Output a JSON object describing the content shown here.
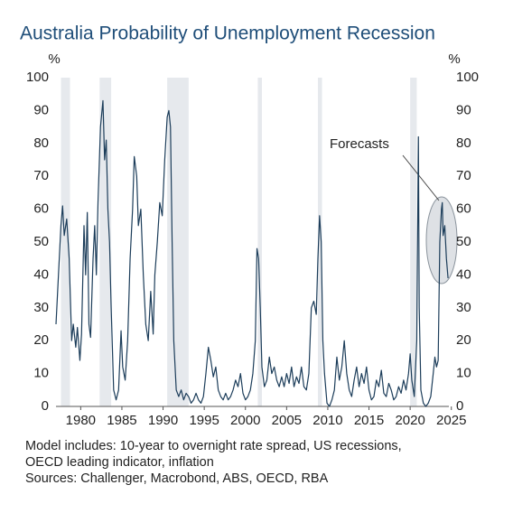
{
  "chart_data": {
    "type": "line",
    "title": "Australia Probability of Unemployment Recession",
    "y_label": "%",
    "xlim": [
      1977,
      2024.7
    ],
    "xticks": [
      1980,
      1985,
      1990,
      1995,
      2000,
      2005,
      2010,
      2015,
      2020,
      2025
    ],
    "ylim": [
      0,
      100
    ],
    "yticks": [
      0,
      10,
      20,
      30,
      40,
      50,
      60,
      70,
      80,
      90,
      100
    ],
    "grid": false,
    "shaded_periods": [
      [
        1977.6,
        1978.7
      ],
      [
        1982.3,
        1983.7
      ],
      [
        1990.5,
        1993.1
      ],
      [
        2001.5,
        2002.0
      ],
      [
        2008.8,
        2009.3
      ],
      [
        2020.0,
        2020.8
      ]
    ],
    "annotation": "Forecasts",
    "notes": [
      "Model includes: 10-year to overnight rate spread, US recessions,",
      "OECD leading indicator, inflation",
      "Sources: Challenger, Macrobond, ABS, OECD, RBA"
    ],
    "series": [
      {
        "name": "Probability",
        "color": "#1c3d5a",
        "x": [
          1977.0,
          1977.3,
          1977.6,
          1977.8,
          1978.0,
          1978.3,
          1978.6,
          1978.9,
          1979.1,
          1979.4,
          1979.6,
          1979.9,
          1980.1,
          1980.4,
          1980.6,
          1980.8,
          1981.0,
          1981.2,
          1981.5,
          1981.7,
          1981.9,
          1982.1,
          1982.4,
          1982.7,
          1982.9,
          1983.1,
          1983.3,
          1983.5,
          1983.7,
          1984.0,
          1984.3,
          1984.6,
          1984.9,
          1985.1,
          1985.4,
          1985.7,
          1986.0,
          1986.3,
          1986.5,
          1986.8,
          1987.0,
          1987.3,
          1987.6,
          1987.9,
          1988.2,
          1988.5,
          1988.8,
          1989.0,
          1989.3,
          1989.6,
          1989.9,
          1990.2,
          1990.5,
          1990.7,
          1990.9,
          1991.1,
          1991.3,
          1991.6,
          1991.9,
          1992.2,
          1992.5,
          1992.8,
          1993.1,
          1993.4,
          1993.7,
          1994.0,
          1994.3,
          1994.6,
          1994.9,
          1995.2,
          1995.5,
          1995.8,
          1996.1,
          1996.4,
          1996.7,
          1997.0,
          1997.3,
          1997.6,
          1997.9,
          1998.2,
          1998.5,
          1998.8,
          1999.1,
          1999.4,
          1999.7,
          2000.0,
          2000.3,
          2000.6,
          2000.9,
          2001.2,
          2001.4,
          2001.6,
          2001.8,
          2002.0,
          2002.3,
          2002.6,
          2002.9,
          2003.2,
          2003.5,
          2003.8,
          2004.1,
          2004.4,
          2004.7,
          2005.0,
          2005.3,
          2005.6,
          2005.9,
          2006.2,
          2006.5,
          2006.8,
          2007.1,
          2007.4,
          2007.7,
          2008.0,
          2008.3,
          2008.6,
          2008.8,
          2009.0,
          2009.2,
          2009.4,
          2009.6,
          2009.9,
          2010.2,
          2010.5,
          2010.8,
          2011.1,
          2011.4,
          2011.7,
          2012.0,
          2012.3,
          2012.6,
          2012.9,
          2013.2,
          2013.5,
          2013.8,
          2014.1,
          2014.4,
          2014.7,
          2015.0,
          2015.3,
          2015.6,
          2015.9,
          2016.2,
          2016.5,
          2016.8,
          2017.1,
          2017.4,
          2017.7,
          2018.0,
          2018.3,
          2018.6,
          2018.9,
          2019.2,
          2019.5,
          2019.8,
          2020.0,
          2020.2,
          2020.5,
          2020.8,
          2021.0,
          2021.1,
          2021.3,
          2021.6,
          2021.9,
          2022.2,
          2022.5,
          2022.8,
          2023.0,
          2023.2,
          2023.4,
          2023.6,
          2023.8,
          2023.9,
          2024.0,
          2024.2,
          2024.4,
          2024.6
        ],
        "values": [
          25,
          40,
          55,
          61,
          52,
          57,
          45,
          20,
          25,
          18,
          24,
          14,
          22,
          55,
          40,
          59,
          25,
          21,
          45,
          55,
          40,
          62,
          85,
          93,
          75,
          81,
          60,
          50,
          30,
          5,
          2,
          5,
          23,
          12,
          8,
          20,
          45,
          60,
          76,
          70,
          55,
          60,
          40,
          25,
          20,
          35,
          22,
          40,
          50,
          62,
          58,
          75,
          88,
          90,
          85,
          50,
          20,
          5,
          3,
          5,
          2,
          4,
          3,
          1,
          2,
          4,
          2,
          1,
          3,
          10,
          18,
          14,
          9,
          12,
          5,
          3,
          2,
          4,
          2,
          3,
          5,
          8,
          6,
          10,
          4,
          2,
          3,
          5,
          10,
          20,
          48,
          45,
          30,
          12,
          6,
          8,
          15,
          10,
          12,
          8,
          6,
          9,
          6,
          10,
          7,
          12,
          6,
          9,
          7,
          12,
          6,
          5,
          10,
          30,
          32,
          28,
          45,
          58,
          50,
          20,
          10,
          1,
          0,
          2,
          5,
          15,
          8,
          12,
          20,
          10,
          5,
          3,
          8,
          12,
          6,
          10,
          7,
          12,
          5,
          2,
          3,
          8,
          6,
          11,
          4,
          3,
          7,
          5,
          2,
          3,
          6,
          4,
          8,
          5,
          10,
          16,
          8,
          3,
          20,
          82,
          30,
          5,
          1,
          0,
          1,
          3,
          10,
          15,
          12,
          14,
          50,
          60,
          62,
          52,
          55,
          45,
          39
        ]
      }
    ]
  }
}
